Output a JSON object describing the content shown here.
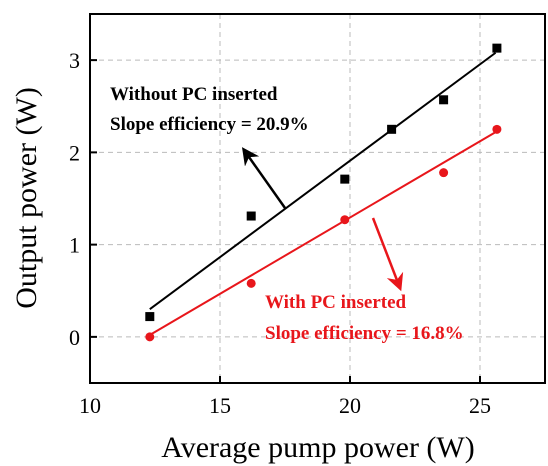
{
  "chart_data": {
    "type": "scatter",
    "xlabel": "Average pump power (W)",
    "ylabel": "Output power (W)",
    "xlim": [
      10,
      27.5
    ],
    "ylim": [
      -0.5,
      3.5
    ],
    "xticks": [
      10,
      15,
      20,
      25
    ],
    "yticks": [
      0,
      1,
      2,
      3
    ],
    "grid": true,
    "series": [
      {
        "name": "Without PC inserted",
        "color": "#000000",
        "marker": "square",
        "annotation": "Slope efficiency = 20.9%",
        "x": [
          12.3,
          16.2,
          19.8,
          21.6,
          23.6,
          25.65
        ],
        "values": [
          0.22,
          1.31,
          1.71,
          2.25,
          2.57,
          3.13
        ],
        "fit": {
          "x": [
            12.3,
            25.6
          ],
          "values": [
            0.3,
            3.08
          ]
        }
      },
      {
        "name": "With PC inserted",
        "color": "#e8161b",
        "marker": "circle",
        "annotation": "Slope efficiency = 16.8%",
        "x": [
          12.3,
          16.2,
          19.8,
          23.6,
          25.65
        ],
        "values": [
          0.0,
          0.58,
          1.27,
          1.78,
          2.25
        ],
        "fit": {
          "x": [
            12.3,
            25.6
          ],
          "values": [
            0.02,
            2.22
          ]
        }
      }
    ]
  }
}
